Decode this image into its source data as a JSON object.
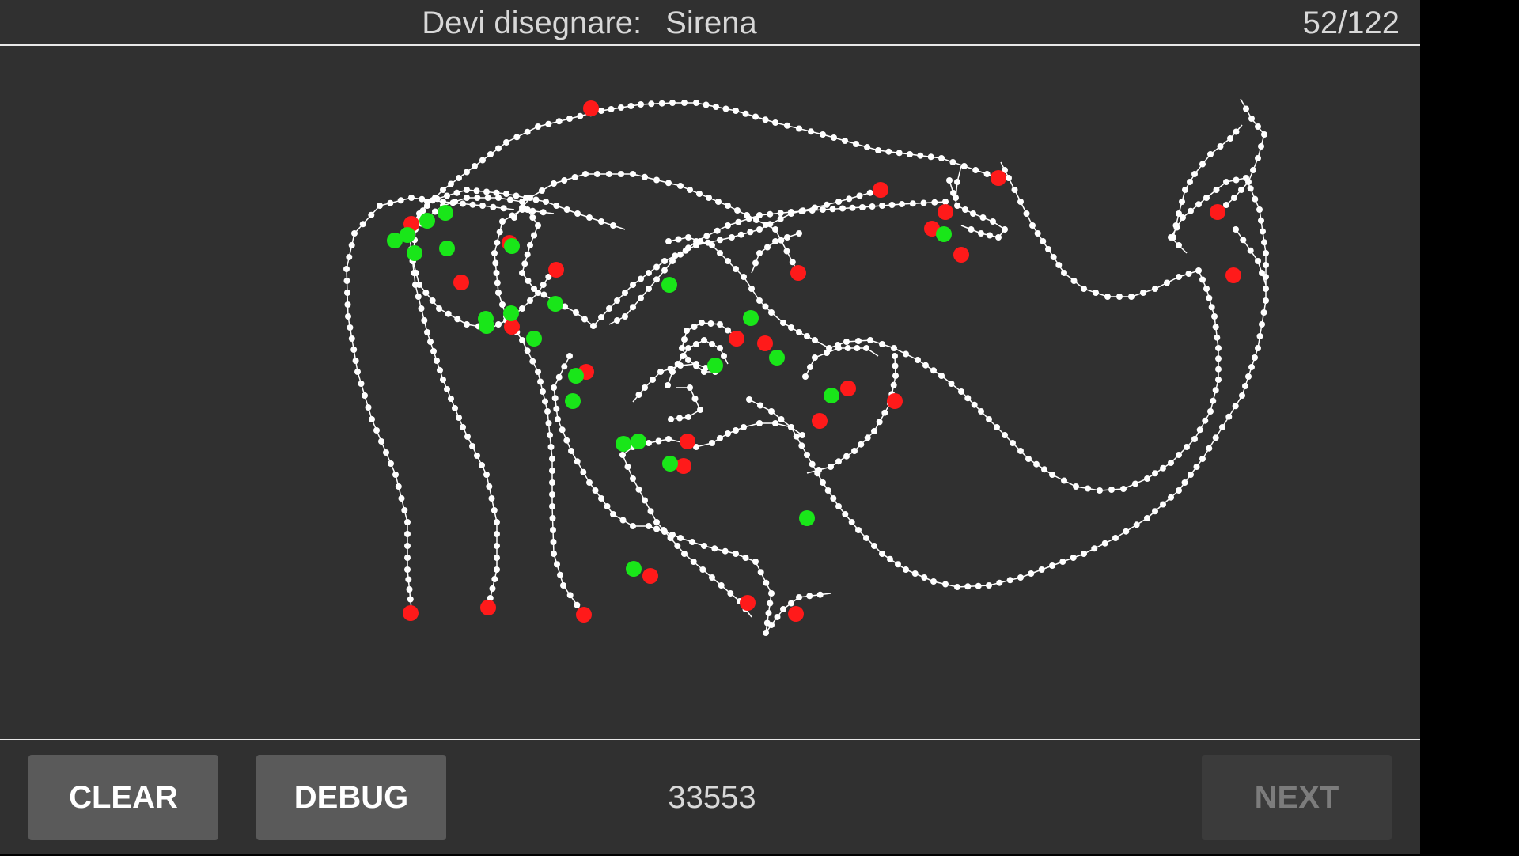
{
  "header": {
    "prompt_label": "Devi disegnare:",
    "prompt_word": "Sirena",
    "counter": "52/122"
  },
  "footer": {
    "clear_label": "CLEAR",
    "debug_label": "DEBUG",
    "score": "33553",
    "next_label": "NEXT"
  },
  "colors": {
    "background": "#303030",
    "stroke": "#ffffff",
    "start_point": "#19e619",
    "end_point": "#ff1a1a"
  }
}
